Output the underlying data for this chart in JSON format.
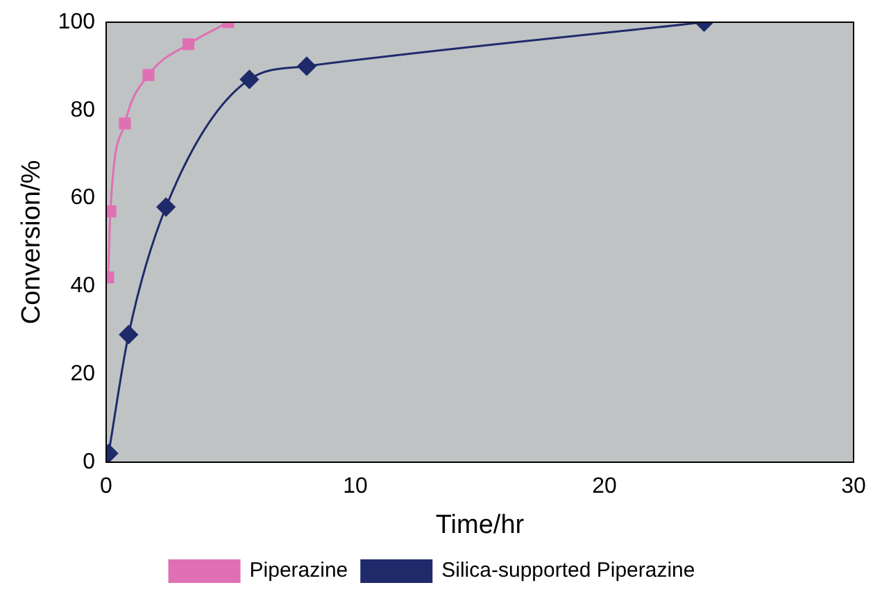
{
  "chart_data": {
    "type": "line",
    "xlabel": "Time/hr",
    "ylabel": "Conversion/%",
    "xlim": [
      0,
      30
    ],
    "xticks": [
      0,
      10,
      20,
      30
    ],
    "ylim": [
      0,
      100
    ],
    "yticks": [
      0,
      20,
      40,
      60,
      80,
      100
    ],
    "grid": false,
    "legend": "bottom",
    "series": [
      {
        "name": "Piperazine",
        "color": "#e070b4",
        "marker": "square",
        "x": [
          0.08,
          0.17,
          0.75,
          1.7,
          3.3,
          4.9
        ],
        "values": [
          42,
          57,
          77,
          88,
          95,
          100
        ]
      },
      {
        "name": "Silica-supported Piperazine",
        "color": "#1f2a6b",
        "marker": "diamond",
        "x": [
          0.1,
          0.9,
          2.4,
          5.75,
          8.05,
          24
        ],
        "values": [
          2,
          29,
          58,
          87,
          90,
          100
        ]
      }
    ]
  }
}
